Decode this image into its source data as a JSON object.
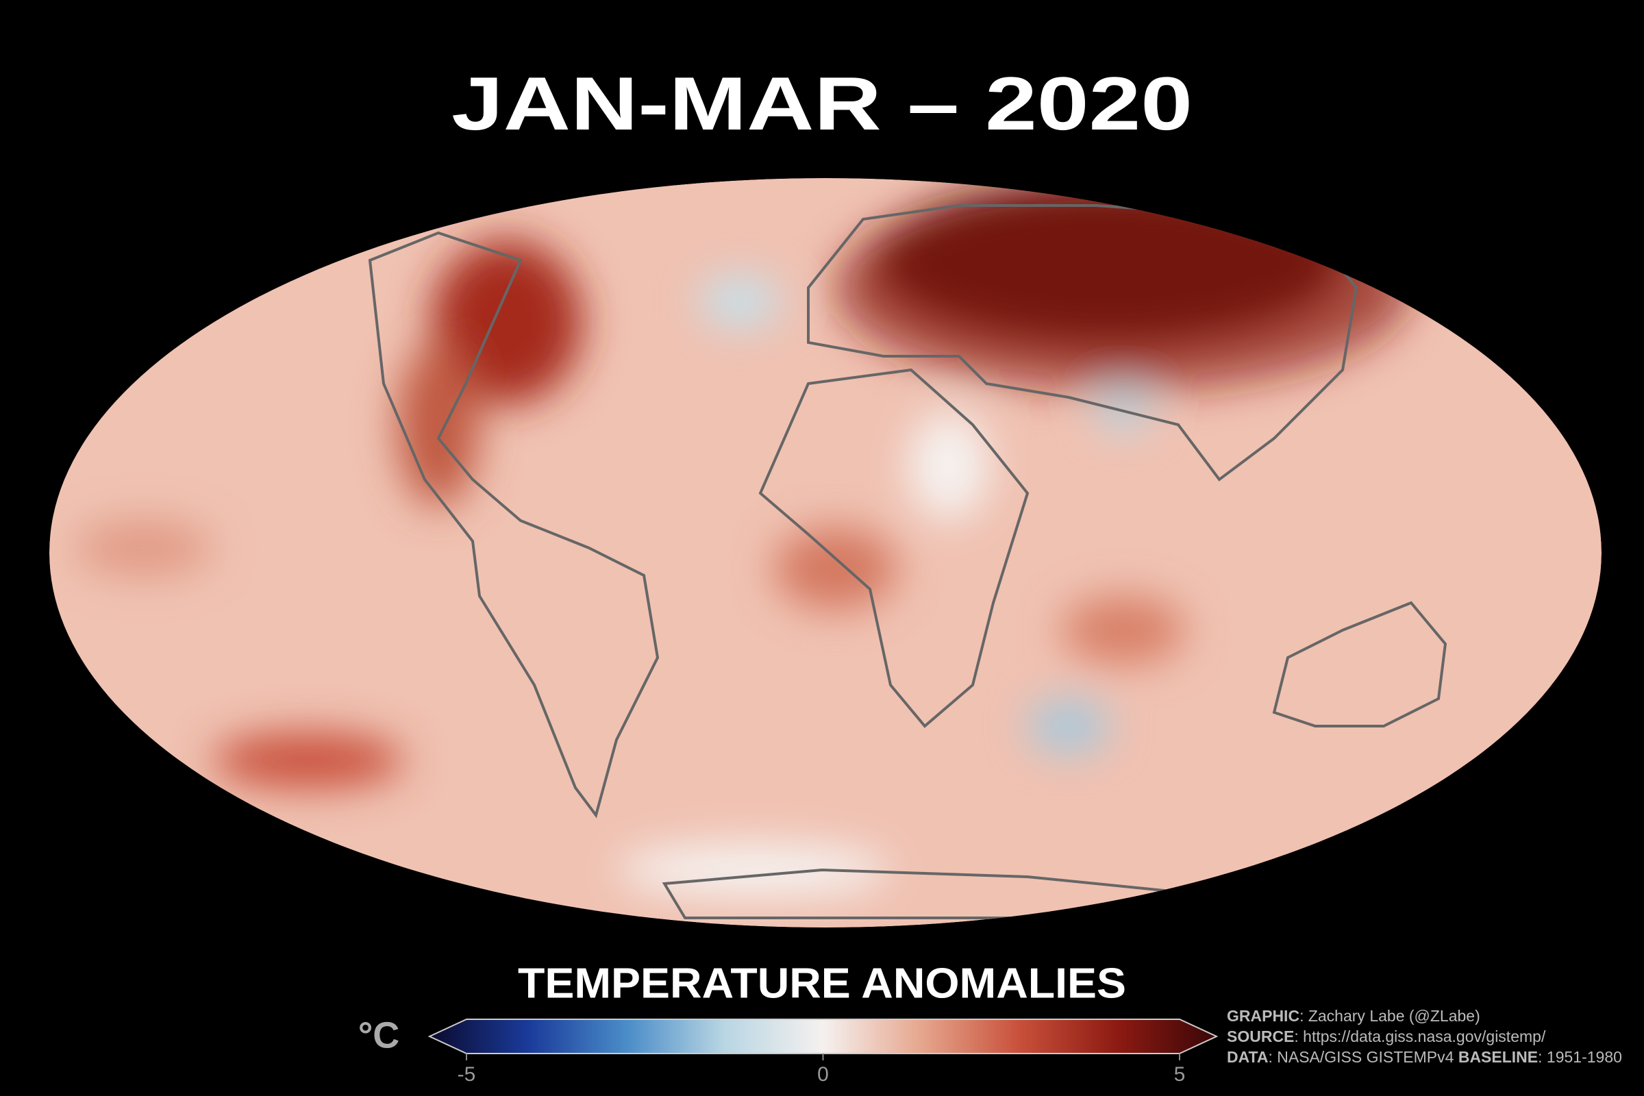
{
  "title": "JAN-MAR – 2020",
  "legend": {
    "title": "TEMPERATURE ANOMALIES",
    "unit": "°C",
    "range": [
      -5,
      5
    ],
    "ticks": [
      -5,
      0,
      5
    ],
    "colors": [
      "#0b0b2e",
      "#1a3a9a",
      "#4a8cc8",
      "#b9d6e3",
      "#f5f1ef",
      "#e6a68e",
      "#c8503a",
      "#8c1a12",
      "#3a0608"
    ]
  },
  "credits": [
    [
      {
        "b": "GRAPHIC"
      },
      {
        "t": ": Zachary Labe (@ZLabe)"
      }
    ],
    [
      {
        "b": "SOURCE"
      },
      {
        "t": ": https://data.giss.nasa.gov/gistemp/"
      }
    ],
    [
      {
        "b": "DATA"
      },
      {
        "t": ": NASA/GISS GISTEMPv4 "
      },
      {
        "b": "BASELINE"
      },
      {
        "t": ": 1951-1980"
      }
    ]
  ]
}
